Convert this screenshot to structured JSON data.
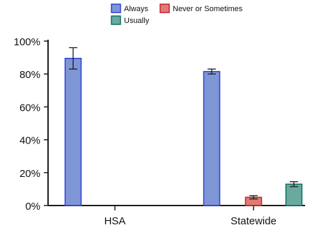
{
  "chart_data": {
    "type": "bar",
    "title": "",
    "xlabel": "",
    "ylabel": "",
    "categories": [
      "HSA",
      "Statewide"
    ],
    "ylim": [
      0,
      100
    ],
    "yticks": [
      0,
      20,
      40,
      60,
      80,
      100
    ],
    "ytick_labels": [
      "0%",
      "20%",
      "40%",
      "60%",
      "80%",
      "100%"
    ],
    "grid": false,
    "legend_position": "top",
    "series": [
      {
        "name": "Always",
        "color": "#7f96d6",
        "stroke": "#2f3ed8",
        "values": [
          89.5,
          81.5
        ],
        "error_low": [
          83,
          80
        ],
        "error_high": [
          96,
          83
        ]
      },
      {
        "name": "Never or Sometimes",
        "color": "#de7b72",
        "stroke": "#c61f2d",
        "values": [
          null,
          5
        ],
        "error_low": [
          null,
          4
        ],
        "error_high": [
          null,
          6
        ]
      },
      {
        "name": "Usually",
        "color": "#6aa9a0",
        "stroke": "#0f6f62",
        "values": [
          null,
          13
        ],
        "error_low": [
          null,
          11.5
        ],
        "error_high": [
          null,
          14.5
        ]
      }
    ],
    "legend": [
      {
        "name": "Always",
        "color": "#7f96d6",
        "stroke": "#2f3ed8"
      },
      {
        "name": "Never or Sometimes",
        "color": "#de7b72",
        "stroke": "#c61f2d"
      },
      {
        "name": "Usually",
        "color": "#6aa9a0",
        "stroke": "#0f6f62"
      }
    ]
  }
}
